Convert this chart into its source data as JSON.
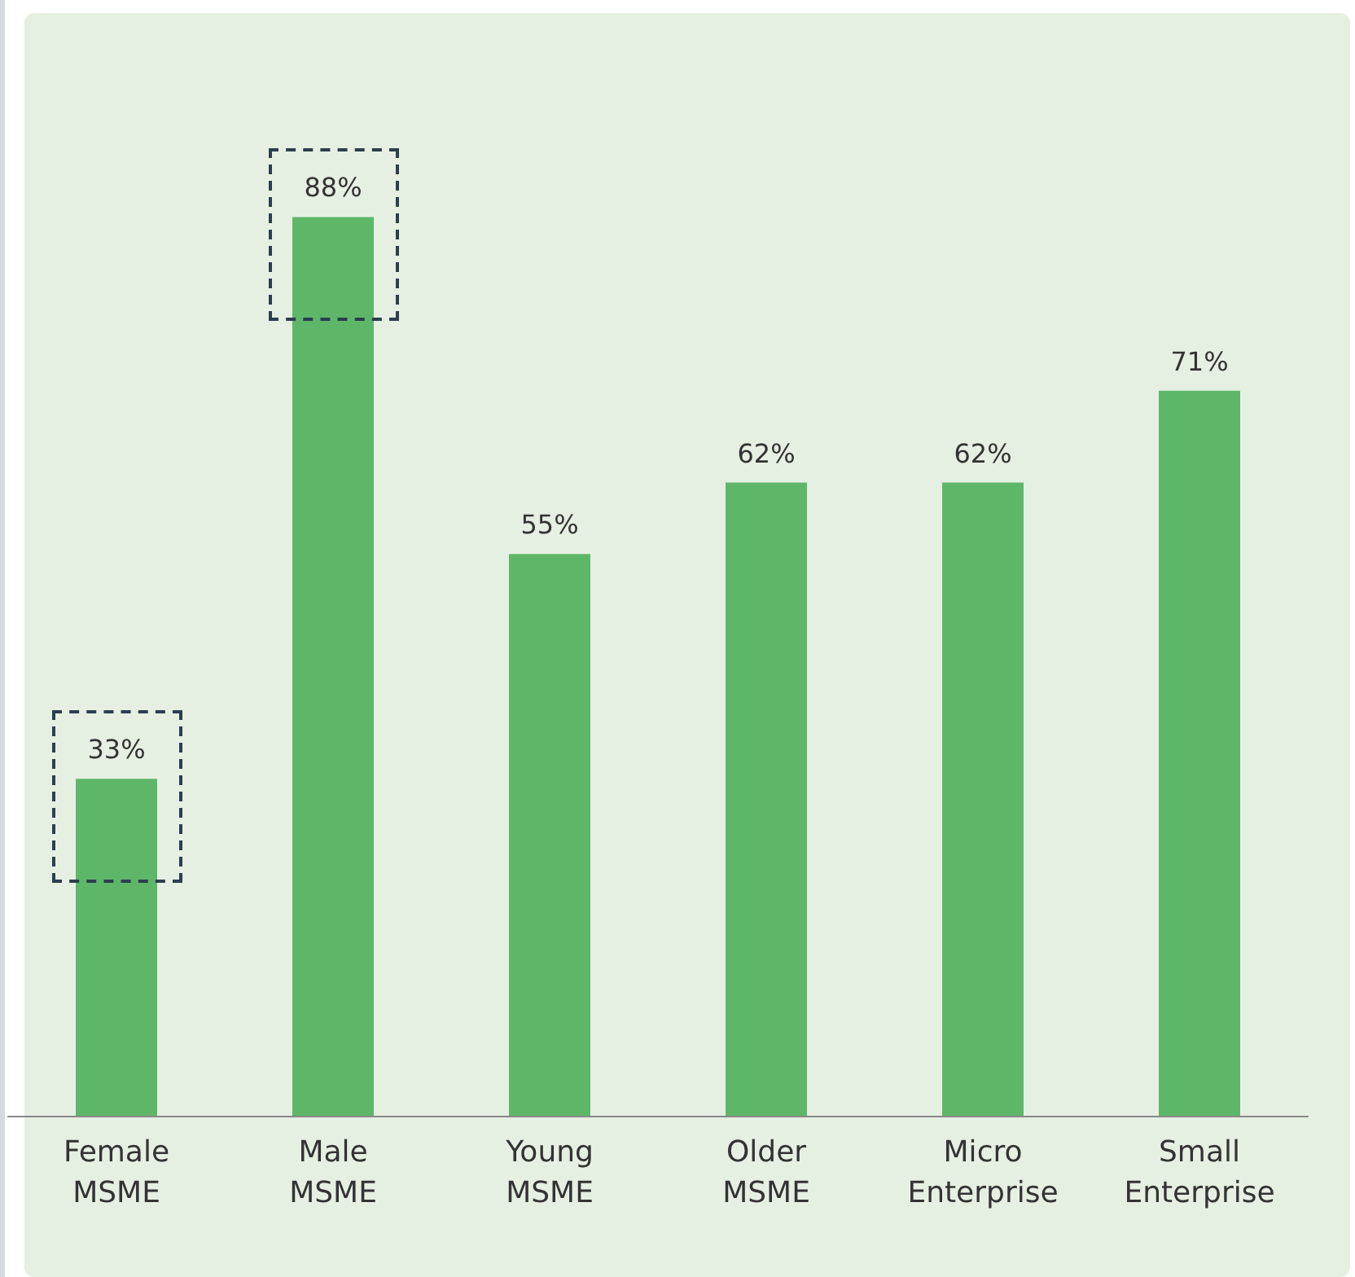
{
  "chart_data": {
    "type": "bar",
    "categories": [
      "Female\nMSME",
      "Male\nMSME",
      "Young\nMSME",
      "Older\nMSME",
      "Micro\nEnterprise",
      "Small\nEnterprise"
    ],
    "values": [
      33,
      88,
      55,
      62,
      62,
      71
    ],
    "value_labels": [
      "33%",
      "88%",
      "55%",
      "62%",
      "62%",
      "71%"
    ],
    "color": "#5eb769"
  }
}
